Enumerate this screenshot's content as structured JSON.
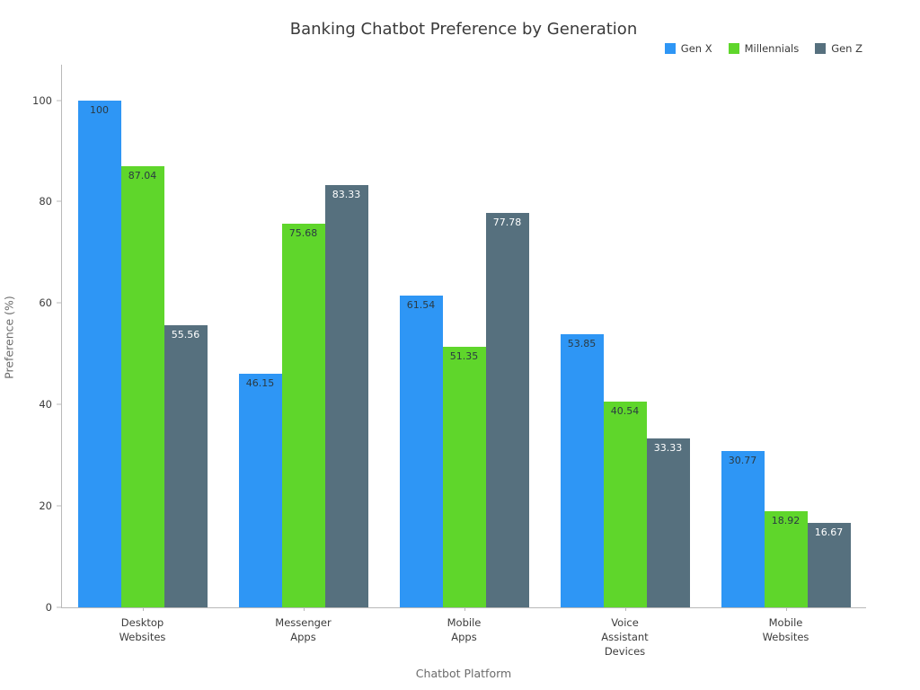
{
  "chart_data": {
    "type": "bar",
    "title": "Banking Chatbot Preference by Generation",
    "xlabel": "Chatbot Platform",
    "ylabel": "Preference (%)",
    "categories": [
      "Desktop\nWebsites",
      "Messenger\nApps",
      "Mobile\nApps",
      "Voice\nAssistant\nDevices",
      "Mobile\nWebsites"
    ],
    "series": [
      {
        "name": "Gen X",
        "color": "#2E96F5",
        "label_color": "#2b3a42",
        "values": [
          100,
          46.15,
          61.54,
          53.85,
          30.77
        ]
      },
      {
        "name": "Millennials",
        "color": "#5FD62B",
        "label_color": "#2b3a42",
        "values": [
          87.04,
          75.68,
          51.35,
          40.54,
          18.92
        ]
      },
      {
        "name": "Gen Z",
        "color": "#56707E",
        "label_color": "#ffffff",
        "values": [
          55.56,
          83.33,
          77.78,
          33.33,
          16.67
        ]
      }
    ],
    "yticks": [
      0,
      20,
      40,
      60,
      80,
      100
    ],
    "ylim": [
      0,
      107
    ],
    "grid": false,
    "legend_position": "top-right",
    "background": "#ffffff"
  }
}
